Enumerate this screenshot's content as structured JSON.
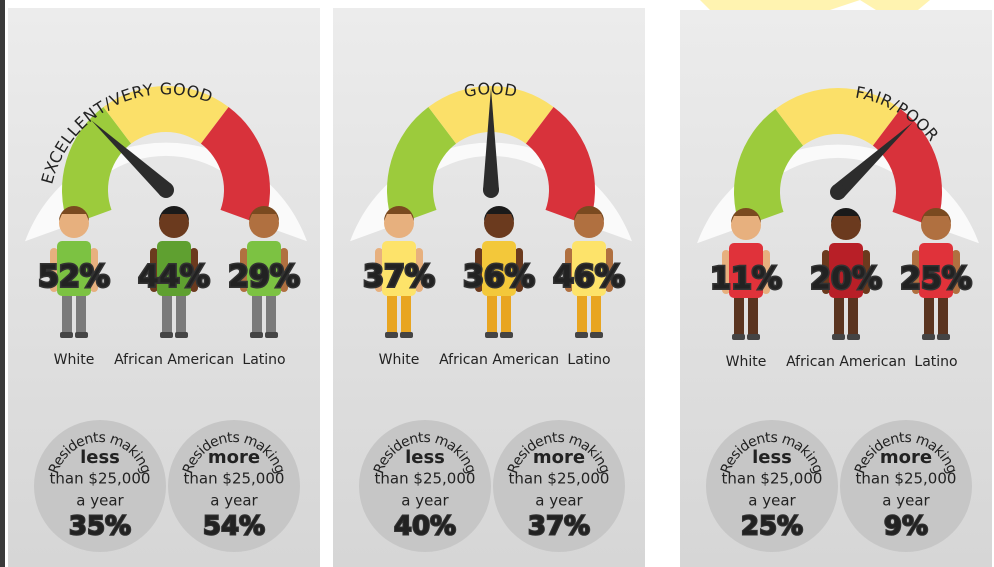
{
  "panels": [
    {
      "gauge_label": "EXCELLENT/VERY GOOD",
      "people": [
        {
          "group": "White",
          "percent": "52%"
        },
        {
          "group": "African American",
          "percent": "44%"
        },
        {
          "group": "Latino",
          "percent": "29%"
        }
      ],
      "income": [
        {
          "heading": "Residents making",
          "emphasis": "less",
          "line1": "than $25,000",
          "line2": "a year",
          "percent": "35%"
        },
        {
          "heading": "Residents making",
          "emphasis": "more",
          "line1": "than $25,000",
          "line2": "a year",
          "percent": "54%"
        }
      ]
    },
    {
      "gauge_label": "GOOD",
      "people": [
        {
          "group": "White",
          "percent": "37%"
        },
        {
          "group": "African American",
          "percent": "36%"
        },
        {
          "group": "Latino",
          "percent": "46%"
        }
      ],
      "income": [
        {
          "heading": "Residents making",
          "emphasis": "less",
          "line1": "than $25,000",
          "line2": "a year",
          "percent": "40%"
        },
        {
          "heading": "Residents making",
          "emphasis": "more",
          "line1": "than $25,000",
          "line2": "a year",
          "percent": "37%"
        }
      ]
    },
    {
      "gauge_label": "FAIR/POOR",
      "people": [
        {
          "group": "White",
          "percent": "11%"
        },
        {
          "group": "African American",
          "percent": "20%"
        },
        {
          "group": "Latino",
          "percent": "25%"
        }
      ],
      "income": [
        {
          "heading": "Residents making",
          "emphasis": "less",
          "line1": "than $25,000",
          "line2": "a year",
          "percent": "25%"
        },
        {
          "heading": "Residents making",
          "emphasis": "more",
          "line1": "than $25,000",
          "line2": "a year",
          "percent": "9%"
        }
      ]
    }
  ]
}
